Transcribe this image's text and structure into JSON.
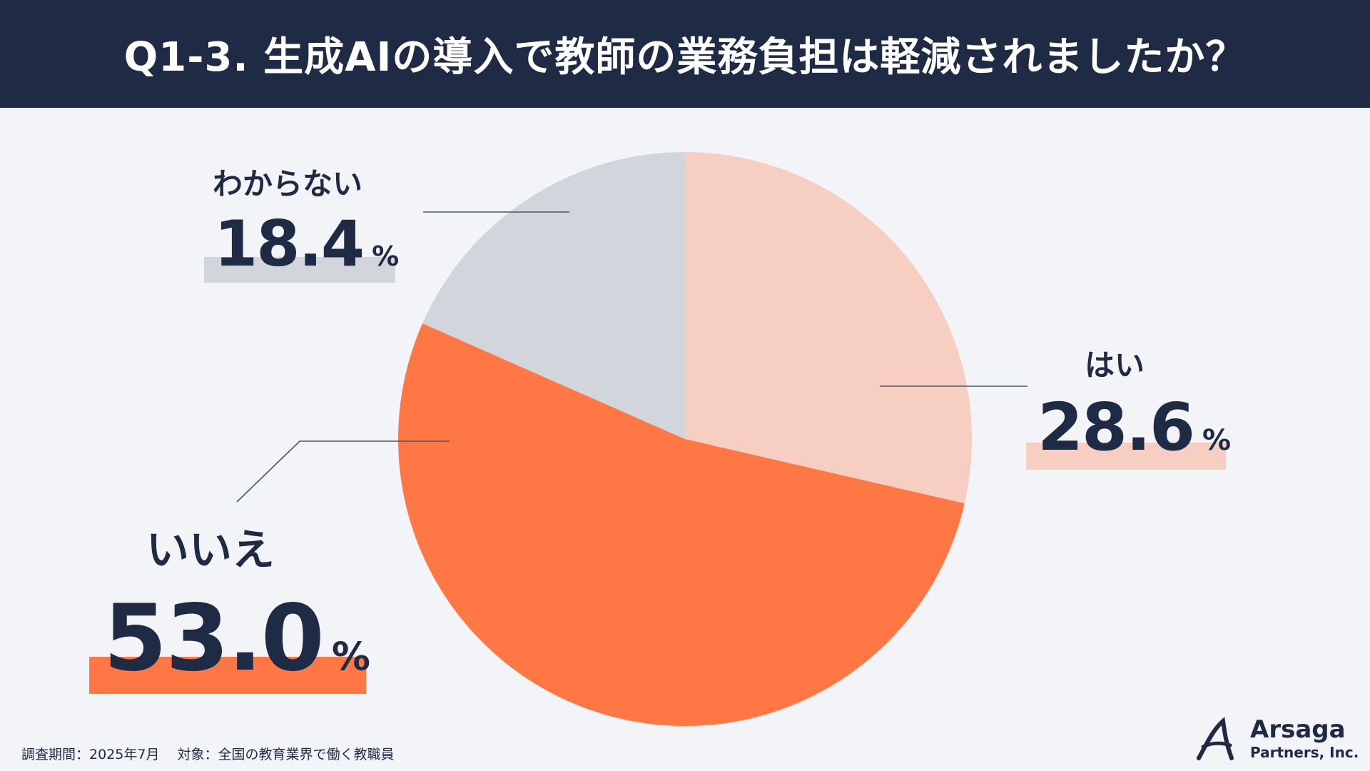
{
  "title": "Q1-3. 生成AIの導入で教師の業務負担は軽減されましたか？",
  "chart_data": {
    "type": "pie",
    "start_angle_deg": 0,
    "direction": "clockwise",
    "slices": [
      {
        "label": "はい",
        "value": 28.6,
        "value_label": "28.6",
        "unit": "%",
        "color": "#f7cfc2"
      },
      {
        "label": "いいえ",
        "value": 53.0,
        "value_label": "53.0",
        "unit": "%",
        "color": "#ff7744"
      },
      {
        "label": "わからない",
        "value": 18.4,
        "value_label": "18.4",
        "unit": "%",
        "color": "#d2d5db"
      }
    ],
    "legend": "none"
  },
  "footer": {
    "note": "調査期間：2025年7月　 対象：全国の教育業界で働く教職員"
  },
  "logo": {
    "name": "Arsaga",
    "subtitle": "Partners, Inc."
  },
  "colors": {
    "header_bg": "#1f2a44",
    "background": "#f3f4f8",
    "text": "#1f2a44",
    "leader_line": "#4a5468"
  }
}
